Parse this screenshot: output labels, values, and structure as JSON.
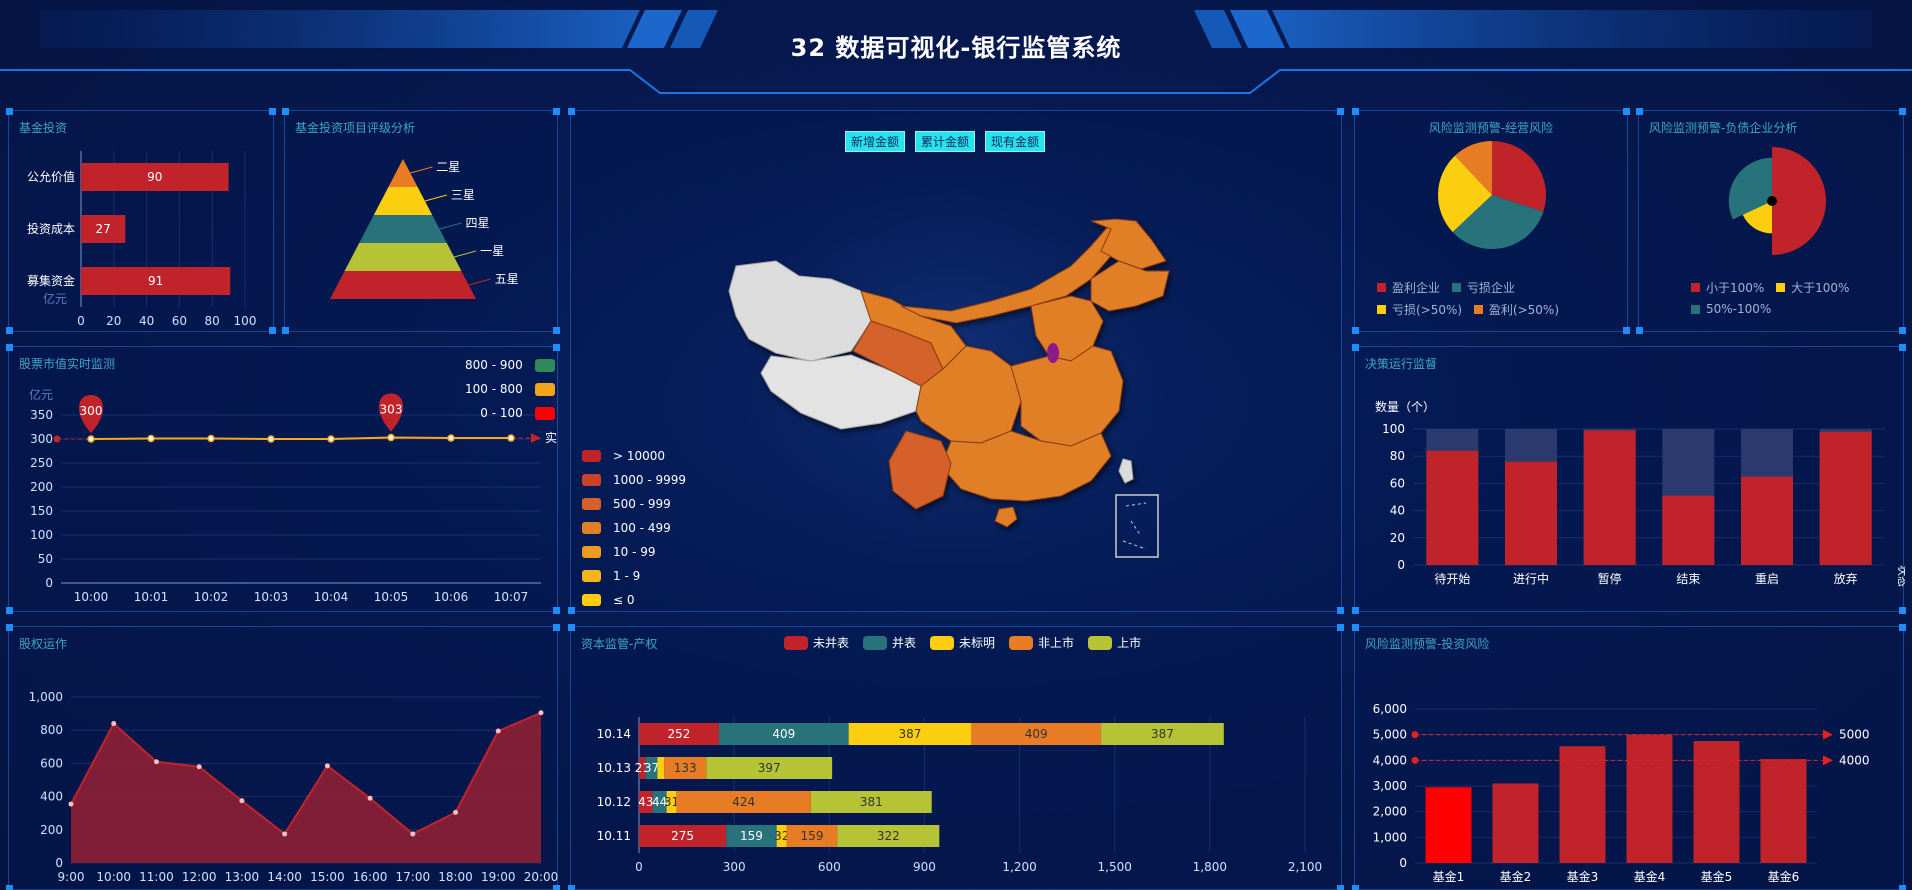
{
  "header": {
    "title": "32 数据可视化-银行监管系统"
  },
  "colors": {
    "red": "#c1232b",
    "teal": "#27727b",
    "yellow": "#fcce10",
    "orange": "#e87c25",
    "olive": "#b5c334",
    "accent": "#28e3ee",
    "line": "#f7a81b"
  },
  "panels": {
    "fund_invest": {
      "title": "基金投资"
    },
    "fund_rating": {
      "title": "基金投资项目评级分析"
    },
    "stock_monitor": {
      "title": "股票市值实时监测"
    },
    "equity_ops": {
      "title": "股权运作"
    },
    "capital": {
      "title": "资本监管-产权"
    },
    "risk_ops": {
      "title": "风险监测预警-经营风险"
    },
    "risk_debt": {
      "title": "风险监测预警-负债企业分析"
    },
    "decision": {
      "title": "决策运行监督"
    },
    "risk_invest": {
      "title": "风险监测预警-投资风险"
    }
  },
  "map": {
    "buttons": [
      "新增金额",
      "累计金额",
      "现有金额"
    ],
    "legend": [
      {
        "label": "> 10000",
        "color": "#c1232b"
      },
      {
        "label": "1000 - 9999",
        "color": "#c9422b"
      },
      {
        "label": "500 - 999",
        "color": "#d5612a"
      },
      {
        "label": "100 - 499",
        "color": "#e07f25"
      },
      {
        "label": "10 - 99",
        "color": "#eb9c20"
      },
      {
        "label": "1 - 9",
        "color": "#f3b51a"
      },
      {
        "label": "≤ 0",
        "color": "#fcce10"
      }
    ]
  },
  "fund_invest_chart": {
    "type": "bar",
    "orientation": "horizontal",
    "categories": [
      "公允价值",
      "投资成本",
      "募集资金"
    ],
    "values": [
      90,
      27,
      91
    ],
    "unit": "亿元",
    "xlim": [
      0,
      100
    ],
    "xticks": [
      0,
      20,
      40,
      60,
      80,
      100
    ]
  },
  "fund_rating_chart": {
    "type": "funnel",
    "labels": [
      "二星",
      "三星",
      "四星",
      "一星",
      "五星"
    ]
  },
  "stock_chart": {
    "type": "line",
    "ylabel": "亿元",
    "x": [
      "10:00",
      "10:01",
      "10:02",
      "10:03",
      "10:04",
      "10:05",
      "10:06",
      "10:07"
    ],
    "values": [
      300,
      301,
      301,
      300,
      300,
      303,
      302,
      302
    ],
    "ylim": [
      0,
      350
    ],
    "yticks": [
      0,
      50,
      100,
      150,
      200,
      250,
      300,
      350
    ],
    "markpoints": [
      {
        "index": 0,
        "value": "300"
      },
      {
        "index": 5,
        "value": "303"
      }
    ],
    "end_label": "实",
    "legend": [
      {
        "label": "800 - 900",
        "color": "#2e8b57"
      },
      {
        "label": "100 - 800",
        "color": "#f3a51a"
      },
      {
        "label": "0 - 100",
        "color": "#ff0000"
      }
    ]
  },
  "equity_chart": {
    "type": "area",
    "x": [
      "9:00",
      "10:00",
      "11:00",
      "12:00",
      "13:00",
      "14:00",
      "15:00",
      "16:00",
      "17:00",
      "18:00",
      "19:00",
      "20:00"
    ],
    "values": [
      355,
      840,
      610,
      580,
      375,
      175,
      585,
      390,
      175,
      305,
      795,
      905
    ],
    "ylim": [
      0,
      1000
    ],
    "yticks": [
      "0",
      "200",
      "400",
      "600",
      "800",
      "1,000"
    ]
  },
  "capital_chart": {
    "type": "bar",
    "orientation": "horizontal",
    "stacked": true,
    "categories": [
      "10.14",
      "10.13",
      "10.12",
      "10.11"
    ],
    "series": [
      {
        "name": "未并表",
        "values": [
          252,
          21,
          43,
          275
        ]
      },
      {
        "name": "并表",
        "values": [
          409,
          37,
          44,
          159
        ]
      },
      {
        "name": "未标明",
        "values": [
          387,
          21,
          31,
          32
        ]
      },
      {
        "name": "非上市",
        "values": [
          409,
          133,
          424,
          159
        ]
      },
      {
        "name": "上市",
        "values": [
          387,
          397,
          381,
          322
        ]
      }
    ],
    "labels": [
      [
        "252",
        "409",
        "387",
        "409",
        "387"
      ],
      [
        "21",
        "37",
        "",
        "133",
        "397"
      ],
      [
        "43",
        "44",
        "31",
        "424",
        "381"
      ],
      [
        "275",
        "159",
        "32",
        "159",
        "322"
      ]
    ],
    "xlim": [
      0,
      2100
    ],
    "xticks": [
      "0",
      "300",
      "600",
      "900",
      "1,200",
      "1,500",
      "1,800",
      "2,100"
    ]
  },
  "risk_ops_chart": {
    "type": "pie",
    "slices": [
      {
        "name": "盈利企业",
        "value": 30,
        "color": "#c1232b"
      },
      {
        "name": "亏损企业",
        "value": 33,
        "color": "#27727b"
      },
      {
        "name": "亏损(>50%)",
        "value": 25,
        "color": "#fcce10"
      },
      {
        "name": "盈利(>50%)",
        "value": 12,
        "color": "#e87c25"
      }
    ]
  },
  "risk_debt_chart": {
    "type": "pie",
    "rose": true,
    "slices": [
      {
        "name": "小于100%",
        "value": 50,
        "color": "#c1232b"
      },
      {
        "name": "大于100%",
        "value": 18,
        "color": "#fcce10"
      },
      {
        "name": "50%-100%",
        "value": 32,
        "color": "#27727b"
      }
    ]
  },
  "decision_chart": {
    "type": "bar",
    "ylabel": "数量（个）",
    "categories": [
      "待开始",
      "进行中",
      "暂停",
      "结束",
      "重启",
      "放弃"
    ],
    "values": [
      84,
      76,
      99,
      51,
      65,
      98
    ],
    "background_max": 100,
    "ylim": [
      0,
      100
    ],
    "yticks": [
      0,
      20,
      40,
      60,
      80,
      100
    ],
    "end_label": "状态"
  },
  "risk_invest_chart": {
    "type": "bar",
    "categories": [
      "基金1",
      "基金2",
      "基金3",
      "基金4",
      "基金5",
      "基金6"
    ],
    "values": [
      2950,
      3100,
      4550,
      5000,
      4750,
      4050
    ],
    "highlight_index": 0,
    "ylim": [
      0,
      6000
    ],
    "yticks": [
      "0",
      "1,000",
      "2,000",
      "3,000",
      "4,000",
      "5,000",
      "6,000"
    ],
    "marklines": [
      {
        "value": 5000,
        "label": "5000"
      },
      {
        "value": 4000,
        "label": "4000"
      }
    ]
  }
}
